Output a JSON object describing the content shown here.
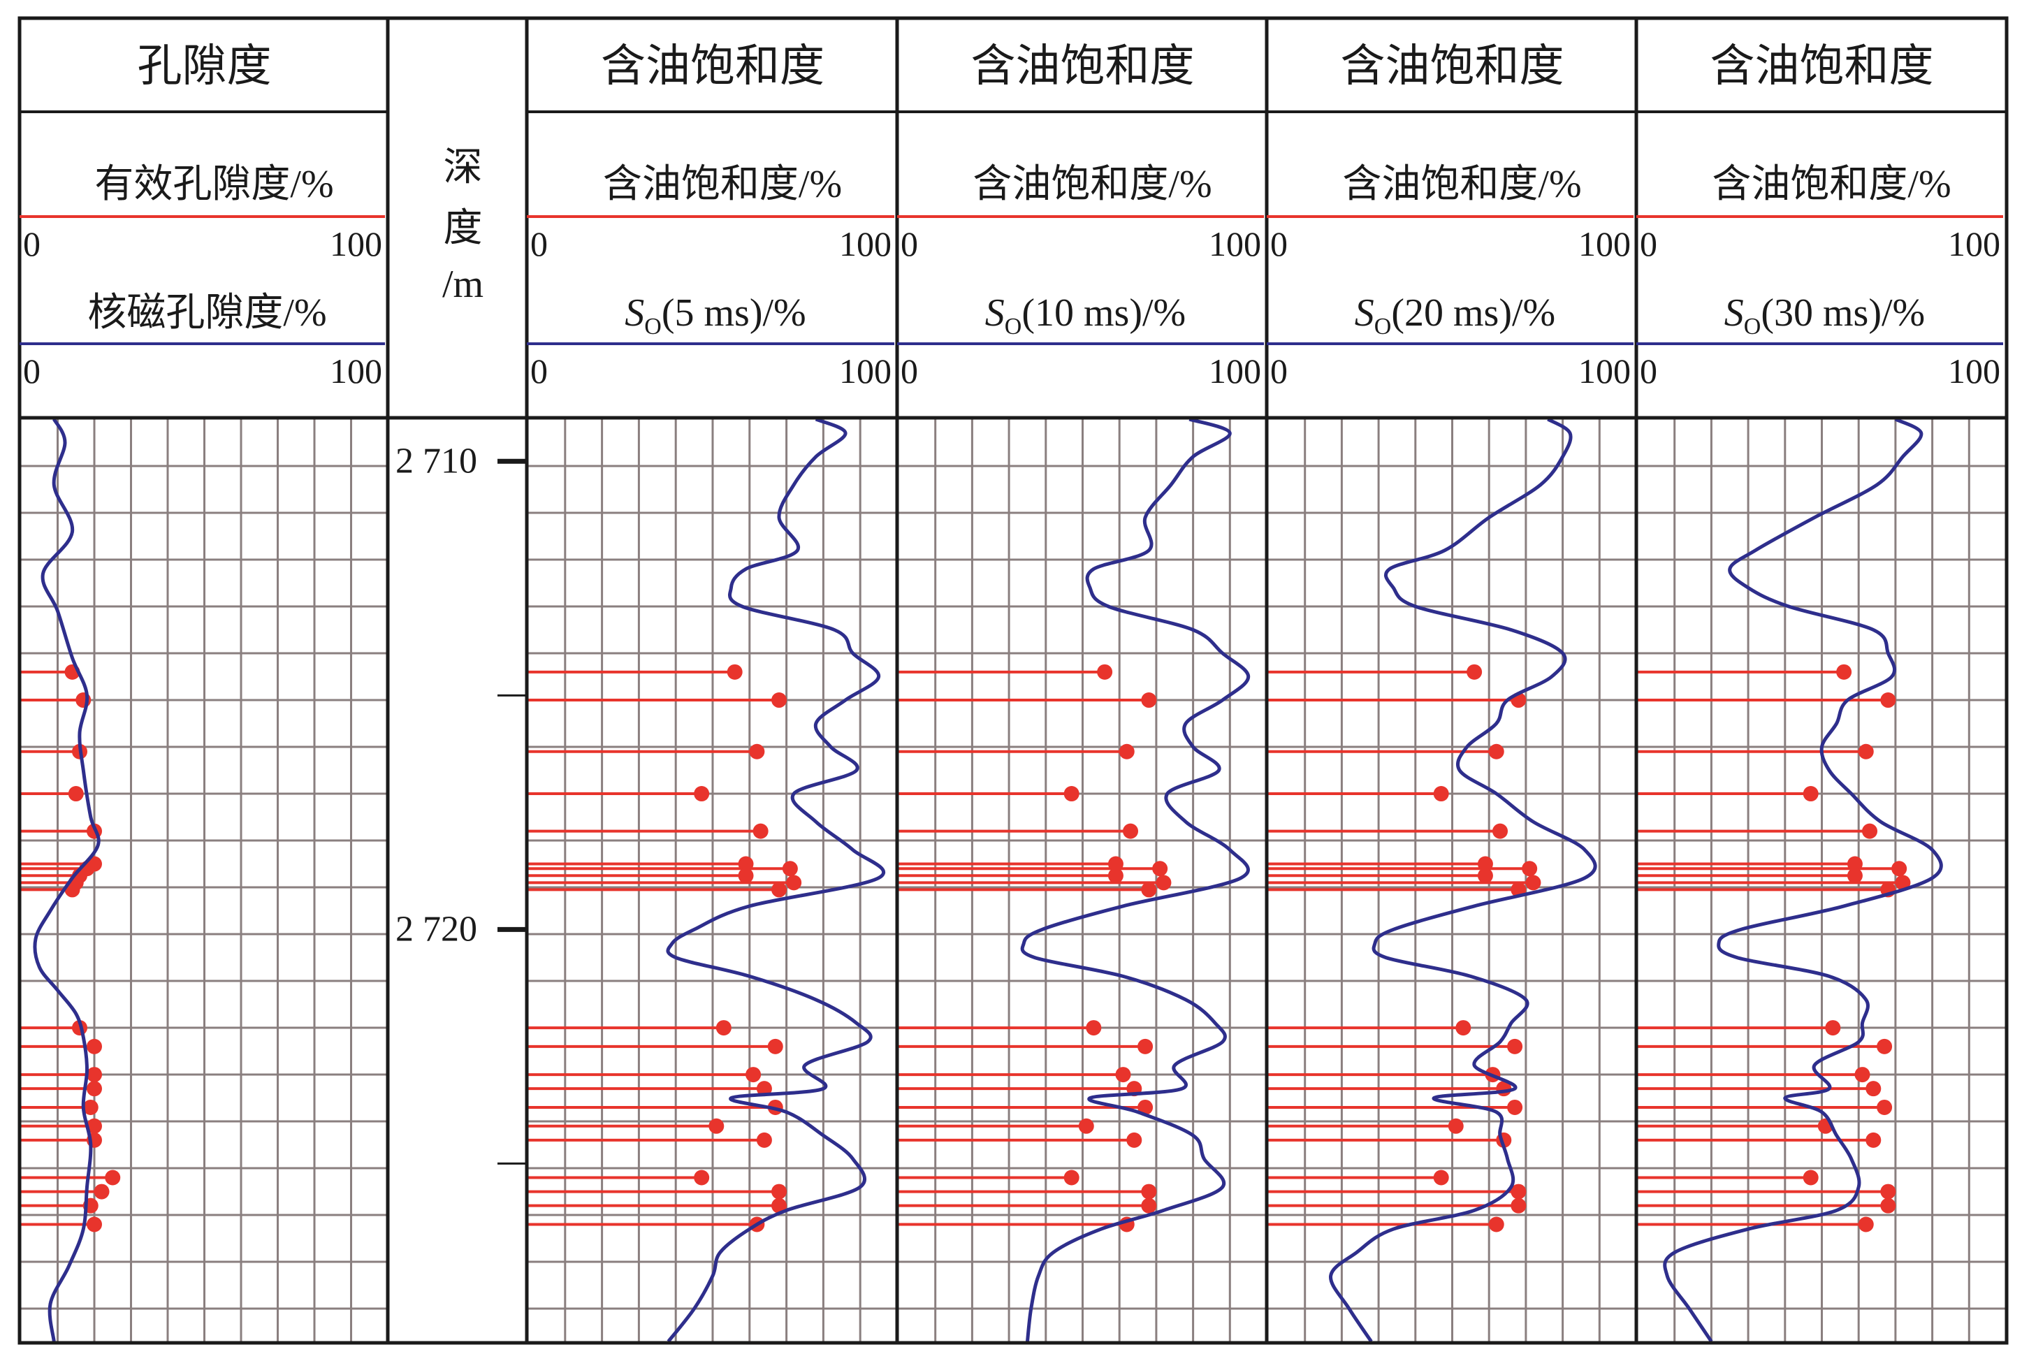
{
  "colors": {
    "frame": "#1a1a1a",
    "grid": "#8a7f7f",
    "curve": "#2e2e8c",
    "core": "#e8342c",
    "background": "#ffffff"
  },
  "depth_track": {
    "header": [
      "深",
      "度",
      "/m"
    ],
    "major_ticks": [
      {
        "depth": 2710,
        "label": "2 710"
      },
      {
        "depth": 2720,
        "label": "2 720"
      }
    ],
    "minor_ticks": [
      2715,
      2725
    ]
  },
  "tracks": [
    {
      "title": "孔隙度",
      "curve_label": "有效孔隙度/%",
      "curve_scale": {
        "min": "0",
        "max": "100"
      },
      "core_label": "核磁孔隙度/%",
      "core_prefix": "",
      "core_sub": "",
      "core_scale": {
        "min": "0",
        "max": "100"
      }
    },
    {
      "title": "含油饱和度",
      "curve_label": "含油饱和度/%",
      "curve_scale": {
        "min": "0",
        "max": "100"
      },
      "core_label": "(5 ms)/%",
      "core_prefix": "S",
      "core_sub": "O",
      "core_scale": {
        "min": "0",
        "max": "100"
      }
    },
    {
      "title": "含油饱和度",
      "curve_label": "含油饱和度/%",
      "curve_scale": {
        "min": "0",
        "max": "100"
      },
      "core_label": "(10 ms)/%",
      "core_prefix": "S",
      "core_sub": "O",
      "core_scale": {
        "min": "0",
        "max": "100"
      }
    },
    {
      "title": "含油饱和度",
      "curve_label": "含油饱和度/%",
      "curve_scale": {
        "min": "0",
        "max": "100"
      },
      "core_label": "(20 ms)/%",
      "core_prefix": "S",
      "core_sub": "O",
      "core_scale": {
        "min": "0",
        "max": "100"
      }
    },
    {
      "title": "含油饱和度",
      "curve_label": "含油饱和度/%",
      "curve_scale": {
        "min": "0",
        "max": "100"
      },
      "core_label": "(30 ms)/%",
      "core_prefix": "S",
      "core_sub": "O",
      "core_scale": {
        "min": "0",
        "max": "100"
      }
    }
  ],
  "chart_data": {
    "type": "well-log",
    "y_axis": {
      "label": "深度/m",
      "range": [
        2709.1,
        2728.8
      ],
      "reversed": true
    },
    "x_range": [
      0,
      100
    ],
    "grid": true,
    "core_depths": [
      2714.5,
      2715.1,
      2716.2,
      2717.1,
      2717.9,
      2718.6,
      2718.7,
      2718.85,
      2719.0,
      2719.15,
      2722.1,
      2722.5,
      2723.1,
      2723.4,
      2723.8,
      2724.2,
      2724.5,
      2725.3,
      2725.6,
      2725.9,
      2726.3
    ],
    "curves": [
      {
        "track": 0,
        "depth": [
          2709.1,
          2709.6,
          2710.5,
          2711.5,
          2712.4,
          2713.2,
          2714.2,
          2715.0,
          2715.8,
          2716.6,
          2717.6,
          2718.2,
          2718.9,
          2719.6,
          2720.2,
          2720.8,
          2721.3,
          2721.8,
          2722.3,
          2723.0,
          2723.8,
          2724.6,
          2725.5,
          2726.4,
          2727.2,
          2728.0,
          2728.8
        ],
        "value": [
          9,
          12,
          9,
          14,
          6,
          10,
          14,
          18,
          16,
          17,
          19,
          21,
          14,
          8,
          4,
          5,
          10,
          15,
          17,
          18,
          17,
          19,
          18,
          17,
          13,
          8,
          9
        ]
      },
      {
        "track": 1,
        "depth": [
          2709.1,
          2709.4,
          2709.9,
          2710.5,
          2711.2,
          2711.9,
          2712.3,
          2712.7,
          2713.1,
          2713.6,
          2714.1,
          2714.6,
          2715.1,
          2715.6,
          2716.1,
          2716.6,
          2717.1,
          2717.7,
          2718.3,
          2718.9,
          2719.5,
          2720.0,
          2720.3,
          2720.6,
          2721.0,
          2721.5,
          2722.0,
          2722.4,
          2722.9,
          2723.4,
          2723.6,
          2723.9,
          2724.4,
          2724.9,
          2725.5,
          2726.0,
          2726.4,
          2726.9,
          2727.4,
          2728.1,
          2728.8
        ],
        "value": [
          78,
          86,
          78,
          72,
          68,
          73,
          59,
          55,
          58,
          83,
          88,
          95,
          86,
          78,
          82,
          89,
          72,
          78,
          88,
          95,
          60,
          45,
          39,
          40,
          60,
          78,
          89,
          92,
          75,
          80,
          55,
          70,
          80,
          88,
          90,
          70,
          60,
          52,
          50,
          45,
          38
        ]
      },
      {
        "track": 2,
        "depth": [
          2709.1,
          2709.4,
          2709.9,
          2710.5,
          2711.2,
          2711.9,
          2712.3,
          2712.7,
          2713.1,
          2713.6,
          2714.1,
          2714.6,
          2715.1,
          2715.6,
          2716.1,
          2716.6,
          2717.1,
          2717.7,
          2718.3,
          2718.9,
          2719.5,
          2720.0,
          2720.3,
          2720.6,
          2721.0,
          2721.5,
          2722.0,
          2722.4,
          2722.9,
          2723.4,
          2723.6,
          2723.9,
          2724.4,
          2724.9,
          2725.5,
          2726.0,
          2726.4,
          2726.9,
          2727.4,
          2728.1,
          2728.8
        ],
        "value": [
          79,
          90,
          80,
          74,
          67,
          68,
          53,
          52,
          57,
          80,
          88,
          95,
          88,
          78,
          80,
          87,
          73,
          78,
          90,
          93,
          61,
          39,
          34,
          37,
          61,
          78,
          86,
          88,
          75,
          77,
          52,
          65,
          80,
          83,
          88,
          72,
          55,
          42,
          38,
          36,
          35
        ]
      },
      {
        "track": 3,
        "depth": [
          2709.1,
          2709.4,
          2709.9,
          2710.5,
          2711.2,
          2711.9,
          2712.3,
          2712.7,
          2713.1,
          2713.6,
          2714.1,
          2714.6,
          2715.1,
          2715.6,
          2716.1,
          2716.6,
          2717.1,
          2717.7,
          2718.3,
          2718.9,
          2719.5,
          2720.0,
          2720.3,
          2720.6,
          2721.0,
          2721.5,
          2722.0,
          2722.4,
          2722.9,
          2723.4,
          2723.6,
          2723.9,
          2724.4,
          2724.9,
          2725.5,
          2726.0,
          2726.4,
          2726.9,
          2727.4,
          2728.1,
          2728.8
        ],
        "value": [
          76,
          82,
          80,
          74,
          60,
          48,
          33,
          34,
          40,
          66,
          80,
          77,
          65,
          62,
          54,
          52,
          62,
          72,
          86,
          86,
          56,
          34,
          29,
          32,
          55,
          70,
          66,
          63,
          56,
          67,
          45,
          62,
          63,
          65,
          66,
          56,
          34,
          24,
          17,
          22,
          28
        ]
      },
      {
        "track": 4,
        "depth": [
          2709.1,
          2709.4,
          2709.9,
          2710.5,
          2711.2,
          2711.9,
          2712.3,
          2712.7,
          2713.1,
          2713.6,
          2714.1,
          2714.6,
          2715.1,
          2715.6,
          2716.1,
          2716.6,
          2717.1,
          2717.7,
          2718.3,
          2718.9,
          2719.5,
          2720.0,
          2720.3,
          2720.6,
          2721.0,
          2721.5,
          2722.0,
          2722.4,
          2722.9,
          2723.4,
          2723.6,
          2723.9,
          2724.4,
          2724.9,
          2725.5,
          2726.0,
          2726.4,
          2726.9,
          2727.4,
          2728.1,
          2728.8
        ],
        "value": [
          70,
          77,
          72,
          65,
          48,
          32,
          25,
          30,
          41,
          64,
          68,
          69,
          57,
          54,
          50,
          52,
          58,
          66,
          80,
          80,
          56,
          28,
          22,
          27,
          52,
          62,
          61,
          60,
          48,
          52,
          40,
          50,
          54,
          58,
          60,
          54,
          30,
          10,
          8,
          14,
          20
        ]
      }
    ],
    "core_points": [
      {
        "track": 0,
        "value": [
          14,
          17,
          16,
          15,
          20,
          20,
          18,
          16,
          15,
          14,
          16,
          20,
          20,
          20,
          19,
          20,
          20,
          25,
          22,
          19,
          20
        ]
      },
      {
        "track": 1,
        "value": [
          56,
          68,
          62,
          47,
          63,
          59,
          71,
          59,
          72,
          68,
          53,
          67,
          61,
          64,
          67,
          51,
          64,
          47,
          68,
          68,
          62
        ]
      },
      {
        "track": 2,
        "value": [
          56,
          68,
          62,
          47,
          63,
          59,
          71,
          59,
          72,
          68,
          53,
          67,
          61,
          64,
          67,
          51,
          64,
          47,
          68,
          68,
          62
        ]
      },
      {
        "track": 3,
        "value": [
          56,
          68,
          62,
          47,
          63,
          59,
          71,
          59,
          72,
          68,
          53,
          67,
          61,
          64,
          67,
          51,
          64,
          47,
          68,
          68,
          62
        ]
      },
      {
        "track": 4,
        "value": [
          56,
          68,
          62,
          47,
          63,
          59,
          71,
          59,
          72,
          68,
          53,
          67,
          61,
          64,
          67,
          51,
          64,
          47,
          68,
          68,
          62
        ]
      }
    ]
  }
}
